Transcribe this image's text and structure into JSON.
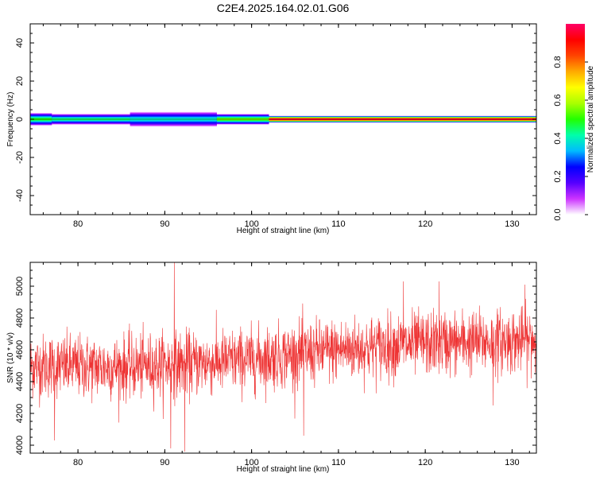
{
  "title": "C2E4.2025.164.02.01.G06",
  "chart_data": [
    {
      "type": "heatmap",
      "title": "C2E4.2025.164.02.01.G06",
      "xlabel": "Height of straight line (km)",
      "ylabel": "Frequency (Hz)",
      "xlim": [
        74.5,
        132.8
      ],
      "ylim": [
        -50,
        50
      ],
      "x_ticks": [
        80,
        90,
        100,
        110,
        120,
        130
      ],
      "y_ticks": [
        -40,
        -20,
        0,
        20,
        40
      ],
      "colorbar": {
        "label": "Normalized spectral amplitude",
        "range": [
          0,
          1
        ],
        "ticks": [
          0.0,
          0.2,
          0.4,
          0.6,
          0.8
        ],
        "colormap": [
          "#ffffff",
          "#cc33ff",
          "#5500ff",
          "#0000ff",
          "#00bbff",
          "#00ffaa",
          "#22ff00",
          "#aaff00",
          "#ffff00",
          "#ffaa00",
          "#ff4400",
          "#ff0000",
          "#ff0066"
        ]
      },
      "segments": [
        {
          "x": [
            74.5,
            77
          ],
          "half_width": 3,
          "peak": 0.5
        },
        {
          "x": [
            77,
            86
          ],
          "half_width": 2.5,
          "peak": 0.45
        },
        {
          "x": [
            86,
            96
          ],
          "half_width": 3.5,
          "peak": 0.4
        },
        {
          "x": [
            96,
            102
          ],
          "half_width": 2.5,
          "peak": 0.55
        },
        {
          "x": [
            102,
            132.8
          ],
          "half_width": 1.5,
          "peak": 0.95
        }
      ]
    },
    {
      "type": "line",
      "xlabel": "Height of straight line (km)",
      "ylabel": "SNR (10 * v/v)",
      "xlim": [
        74.5,
        132.8
      ],
      "ylim": [
        3950,
        5150
      ],
      "x_ticks": [
        80,
        90,
        100,
        110,
        120,
        130
      ],
      "y_ticks": [
        4000,
        4200,
        4400,
        4600,
        4800,
        5000
      ],
      "color": "#ee3333",
      "trend": [
        {
          "x": 74.5,
          "y": 4500
        },
        {
          "x": 85,
          "y": 4490
        },
        {
          "x": 95,
          "y": 4520
        },
        {
          "x": 100,
          "y": 4540
        },
        {
          "x": 105,
          "y": 4570
        },
        {
          "x": 110,
          "y": 4600
        },
        {
          "x": 120,
          "y": 4640
        },
        {
          "x": 132.8,
          "y": 4660
        }
      ],
      "noise_sd": 100,
      "points": 2000,
      "spikes": [
        {
          "x": 91.1,
          "y": 5150
        },
        {
          "x": 92.3,
          "y": 3960
        },
        {
          "x": 90.7,
          "y": 3980
        },
        {
          "x": 77.3,
          "y": 4030
        },
        {
          "x": 106,
          "y": 4060
        },
        {
          "x": 121.6,
          "y": 5030
        },
        {
          "x": 117.5,
          "y": 5030
        },
        {
          "x": 131.5,
          "y": 5010
        },
        {
          "x": 127.8,
          "y": 4250
        }
      ]
    }
  ]
}
